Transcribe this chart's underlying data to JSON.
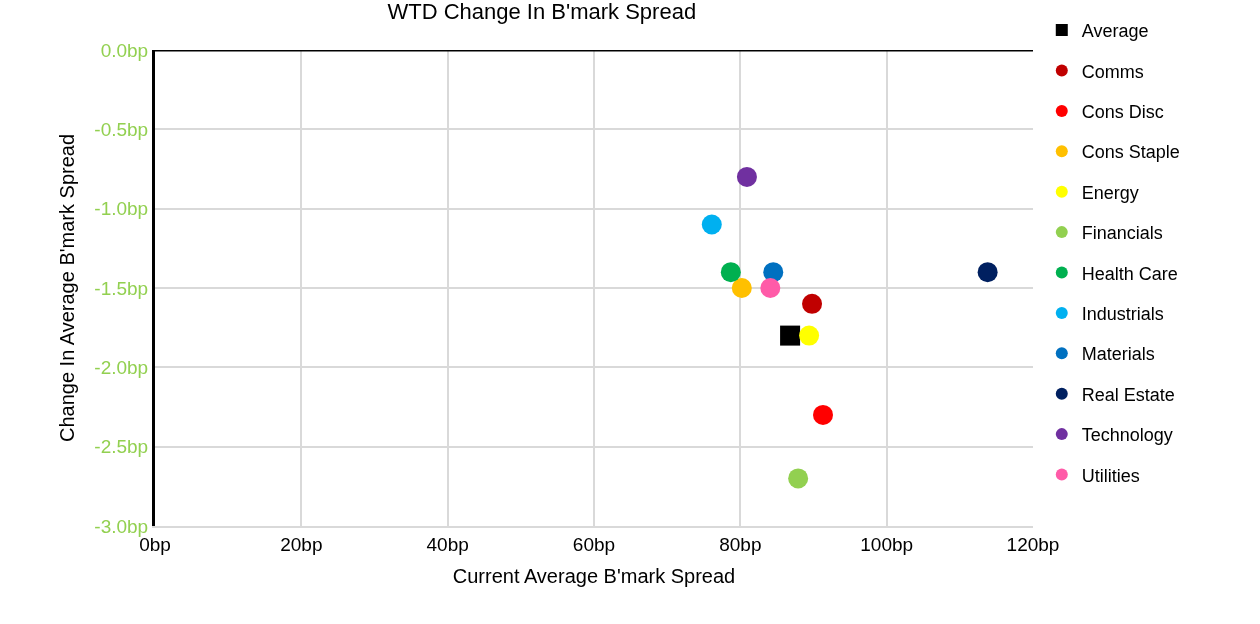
{
  "chart_data": {
    "type": "scatter",
    "title": "WTD Change In B'mark Spread",
    "xlabel": "Current Average B'mark Spread",
    "ylabel": "Change In Average B'mark Spread",
    "xlim": [
      0,
      120
    ],
    "xticks": [
      {
        "value": 0,
        "label": "0bp"
      },
      {
        "value": 20,
        "label": "20bp"
      },
      {
        "value": 40,
        "label": "40bp"
      },
      {
        "value": 60,
        "label": "60bp"
      },
      {
        "value": 80,
        "label": "80bp"
      },
      {
        "value": 100,
        "label": "100bp"
      },
      {
        "value": 120,
        "label": "120bp"
      }
    ],
    "ylim": [
      -3,
      0
    ],
    "yticks": [
      {
        "value": 0,
        "label": "0.0bp"
      },
      {
        "value": -0.5,
        "label": "-0.5bp"
      },
      {
        "value": -1,
        "label": "-1.0bp"
      },
      {
        "value": -1.5,
        "label": "-1.5bp"
      },
      {
        "value": -2,
        "label": "-2.0bp"
      },
      {
        "value": -2.5,
        "label": "-2.5bp"
      },
      {
        "value": -3,
        "label": "-3.0bp"
      }
    ],
    "grid": true,
    "legend": "right",
    "marker": "circle",
    "series": [
      {
        "name": "Average",
        "color": "#000000",
        "marker": "square",
        "x": [
          86.8
        ],
        "values": [
          -1.8
        ]
      },
      {
        "name": "Comms",
        "color": "#c00000",
        "x": [
          89.8
        ],
        "values": [
          -1.6
        ]
      },
      {
        "name": "Cons Disc",
        "color": "#ff0000",
        "x": [
          91.3
        ],
        "values": [
          -2.3
        ]
      },
      {
        "name": "Cons Staple",
        "color": "#ffc000",
        "x": [
          80.2
        ],
        "values": [
          -1.5
        ]
      },
      {
        "name": "Energy",
        "color": "#ffff00",
        "x": [
          89.4
        ],
        "values": [
          -1.8
        ]
      },
      {
        "name": "Financials",
        "color": "#92d050",
        "x": [
          87.9
        ],
        "values": [
          -2.7
        ]
      },
      {
        "name": "Health Care",
        "color": "#00b050",
        "x": [
          78.7
        ],
        "values": [
          -1.4
        ]
      },
      {
        "name": "Industrials",
        "color": "#00b0f0",
        "x": [
          76.1
        ],
        "values": [
          -1.1
        ]
      },
      {
        "name": "Materials",
        "color": "#0070c0",
        "x": [
          84.5
        ],
        "values": [
          -1.4
        ]
      },
      {
        "name": "Real Estate",
        "color": "#002060",
        "x": [
          113.8
        ],
        "values": [
          -1.4
        ]
      },
      {
        "name": "Technology",
        "color": "#7030a0",
        "x": [
          80.9
        ],
        "values": [
          -0.8
        ]
      },
      {
        "name": "Utilities",
        "color": "#ff5ba8",
        "x": [
          84.1
        ],
        "values": [
          -1.5
        ]
      }
    ]
  }
}
